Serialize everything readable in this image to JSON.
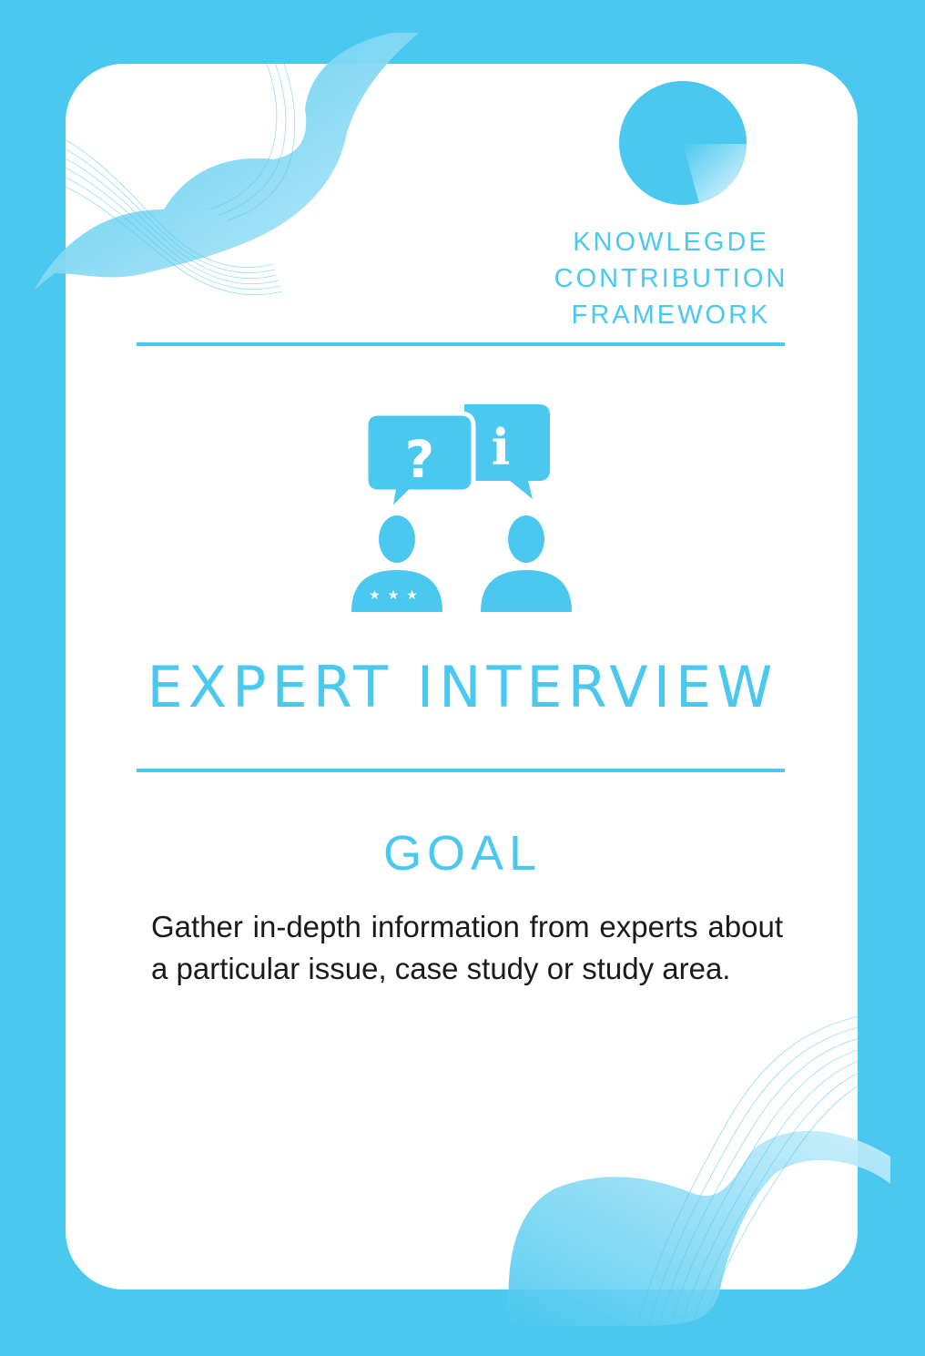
{
  "brand": {
    "lines": [
      "KNOWLEGDE",
      "CONTRIBUTION",
      "FRAMEWORK"
    ],
    "logo_icon": "pie-logo-icon"
  },
  "card": {
    "icon": "expert-interview-icon",
    "title": "EXPERT INTERVIEW",
    "goal_heading": "GOAL",
    "goal_text": "Gather in-depth information from experts about a particular issue, case study or study area."
  },
  "colors": {
    "accent": "#4bc8ef",
    "background": "#ffffff",
    "text": "#1a1a1a"
  }
}
